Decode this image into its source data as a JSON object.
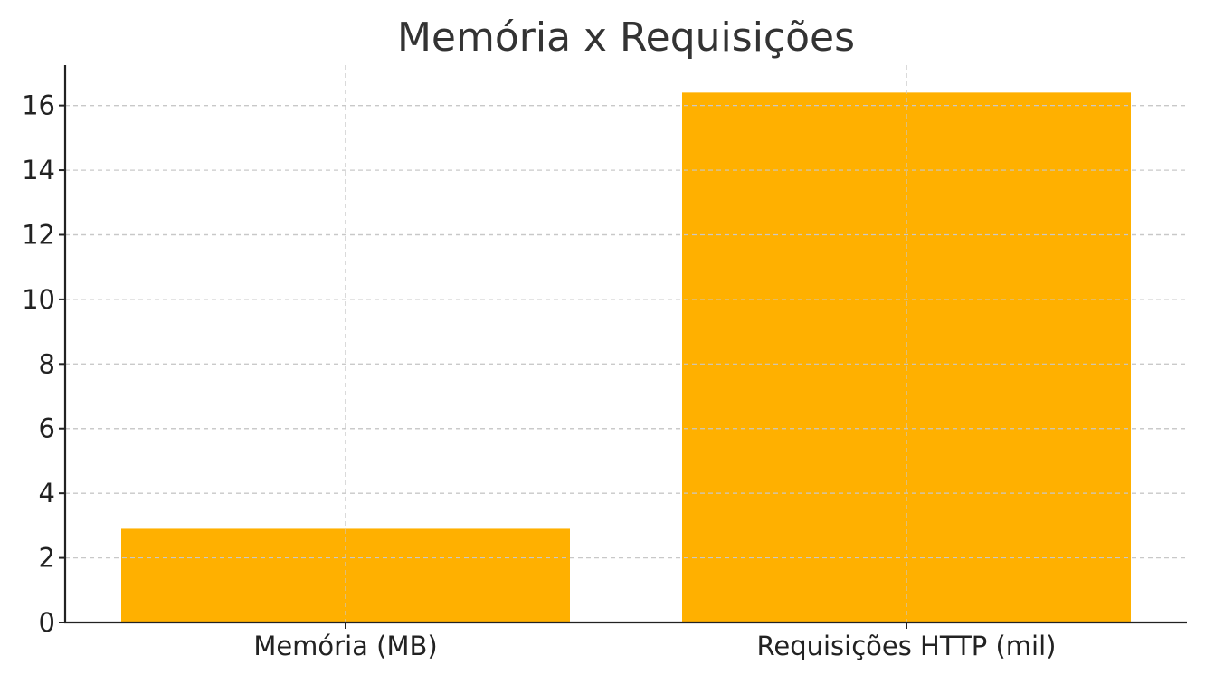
{
  "chart_data": {
    "type": "bar",
    "title": "Memória x Requisições",
    "xlabel": "",
    "ylabel": "",
    "categories": [
      "Memória (MB)",
      "Requisições HTTP (mil)"
    ],
    "values": [
      2.9,
      16.4
    ],
    "ylim": [
      0,
      17.25
    ],
    "yticks": [
      0,
      2,
      4,
      6,
      8,
      10,
      12,
      14,
      16
    ],
    "grid": true,
    "grid_style": "dashed",
    "bar_color": "#FFB000",
    "legend": "none"
  }
}
